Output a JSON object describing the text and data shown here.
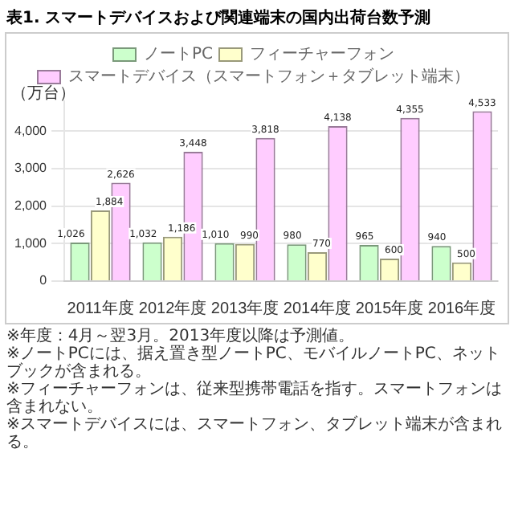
{
  "chart_data": {
    "type": "bar",
    "title": "表1. スマートデバイスおよび関連端末の国内出荷台数予測",
    "ylabel": "（万台）",
    "categories": [
      "2011年度",
      "2012年度",
      "2013年度",
      "2014年度",
      "2015年度",
      "2016年度"
    ],
    "series": [
      {
        "name": "ノートPC",
        "color": "#ccffcc",
        "values": [
          1026,
          1032,
          1010,
          980,
          965,
          940
        ],
        "value_labels": [
          "1,026",
          "1,032",
          "1,010",
          "980",
          "965",
          "940"
        ]
      },
      {
        "name": "フィーチャーフォン",
        "color": "#ffffcc",
        "values": [
          1884,
          1186,
          990,
          770,
          600,
          500
        ],
        "value_labels": [
          "1,884",
          "1,186",
          "990",
          "770",
          "600",
          "500"
        ]
      },
      {
        "name": "スマートデバイス（スマートフォン＋タブレット端末）",
        "color": "#ffccff",
        "values": [
          2626,
          3448,
          3818,
          4138,
          4355,
          4533
        ],
        "value_labels": [
          "2,626",
          "3,448",
          "3,818",
          "4,138",
          "4,355",
          "4,533"
        ]
      }
    ],
    "ylim": [
      0,
      4800
    ],
    "yticks": [
      0,
      {
        "value": 1000,
        "label": "1,000"
      },
      {
        "value": 2000,
        "label": "2,000"
      },
      {
        "value": 3000,
        "label": "3,000"
      },
      {
        "value": 4000,
        "label": "4,000"
      }
    ],
    "grid": "y",
    "legend": "top",
    "annotations": [
      "※年度：4月～翌3月。2013年度以降は予測値。",
      "※ノートPCには、据え置き型ノートPC、モバイルノートPC、ネットブックが含まれる。",
      "※フィーチャーフォンは、従来型携帯電話を指す。スマートフォンは含まれない。",
      "※スマートデバイスには、スマートフォン、タブレット端末が含まれる。"
    ]
  }
}
